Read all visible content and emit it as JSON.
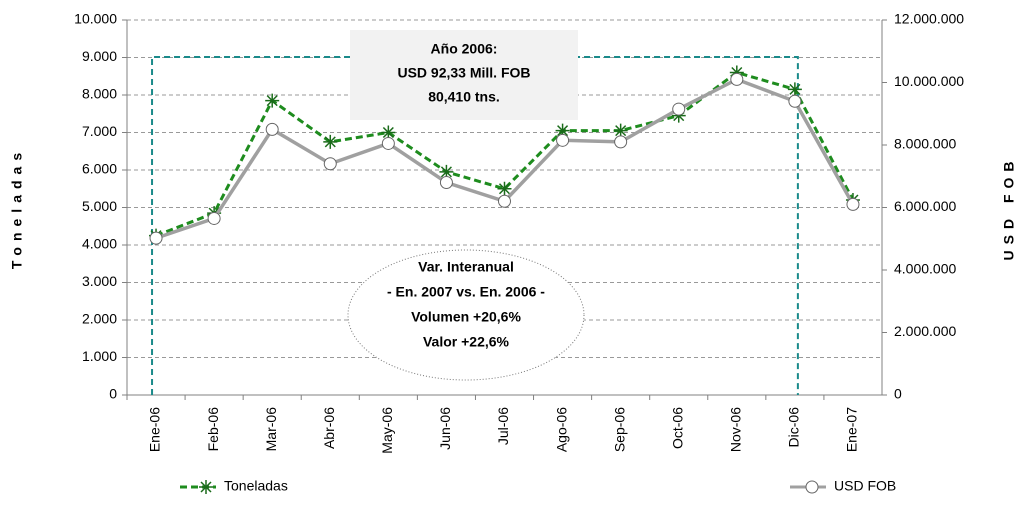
{
  "chart_data": {
    "type": "line",
    "categories": [
      "Ene-06",
      "Feb-06",
      "Mar-06",
      "Abr-06",
      "May-06",
      "Jun-06",
      "Jul-06",
      "Ago-06",
      "Sep-06",
      "Oct-06",
      "Nov-06",
      "Dic-06",
      "Ene-07"
    ],
    "series": [
      {
        "name": "Toneladas",
        "color": "#1e8c1e",
        "values": [
          4250,
          4850,
          7850,
          6750,
          7000,
          5950,
          5500,
          7050,
          7050,
          7450,
          8600,
          8150,
          5200
        ]
      },
      {
        "name": "USD FOB",
        "color": "#a0a0a0",
        "axis": "y2",
        "values": [
          5020000,
          5650000,
          8500000,
          7400000,
          8050000,
          6800000,
          6200000,
          8150000,
          8100000,
          9150000,
          10100000,
          9400000,
          6100000
        ]
      }
    ],
    "ylabel": "Toneladas",
    "y2label": "USD FOB",
    "ylim": [
      0,
      10000
    ],
    "yticks": [
      0,
      {
        "value": 1000,
        "label": "1.000"
      },
      {
        "value": 2000,
        "label": "2.000"
      },
      {
        "value": 3000,
        "label": "3.000"
      },
      {
        "value": 4000,
        "label": "4.000"
      },
      {
        "value": 5000,
        "label": "5.000"
      },
      {
        "value": 6000,
        "label": "6.000"
      },
      {
        "value": 7000,
        "label": "7.000"
      },
      {
        "value": 8000,
        "label": "8.000"
      },
      {
        "value": 9000,
        "label": "9.000"
      },
      {
        "value": 10000,
        "label": "10.000"
      }
    ],
    "y2lim": [
      0,
      12000000
    ],
    "y2ticks": [
      0,
      {
        "value": 2000000,
        "label": "2.000.000"
      },
      {
        "value": 4000000,
        "label": "4.000.000"
      },
      {
        "value": 6000000,
        "label": "6.000.000"
      },
      {
        "value": 8000000,
        "label": "8.000.000"
      },
      {
        "value": 10000000,
        "label": "10.000.000"
      },
      {
        "value": 12000000,
        "label": "12.000.000"
      }
    ],
    "grid": true,
    "annotations": {
      "box": [
        "Año 2006:",
        "USD 92,33 Mill. FOB",
        "80,410 tns."
      ],
      "ellipse": [
        "Var. Interanual",
        "- En. 2007 vs. En. 2006 -",
        "Volumen +20,6%",
        "Valor +22,6%"
      ]
    }
  }
}
